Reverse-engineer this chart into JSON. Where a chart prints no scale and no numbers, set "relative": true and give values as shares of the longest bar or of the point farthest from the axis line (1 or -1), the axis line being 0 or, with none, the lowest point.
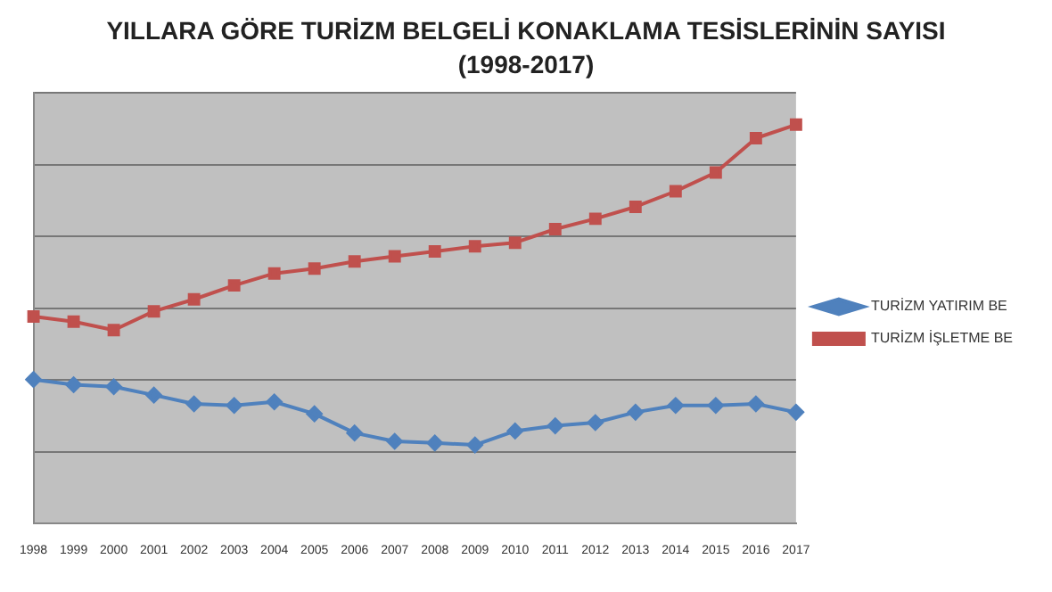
{
  "chart_data": {
    "type": "line",
    "title": "YILLARA GÖRE TURİZM BELGELİ KONAKLAMA TESİSLERİNİN SAYISI",
    "subtitle": "(1998-2017)",
    "categories": [
      "1998",
      "1999",
      "2000",
      "2001",
      "2002",
      "2003",
      "2004",
      "2005",
      "2006",
      "2007",
      "2008",
      "2009",
      "2010",
      "2011",
      "2012",
      "2013",
      "2014",
      "2015",
      "2016",
      "2017"
    ],
    "relative": true,
    "grid": "y",
    "legend": "right",
    "series": [
      {
        "name": "TURİZM YATIRIM BE",
        "color": "#4f81bd",
        "marker": "diamond",
        "values": [
          0.361,
          0.348,
          0.343,
          0.322,
          0.3,
          0.296,
          0.305,
          0.275,
          0.227,
          0.206,
          0.202,
          0.197,
          0.232,
          0.245,
          0.253,
          0.279,
          0.296,
          0.296,
          0.3,
          0.279
        ]
      },
      {
        "name": "TURİZM İŞLETME BE",
        "color": "#c0504d",
        "marker": "square",
        "values": [
          0.519,
          0.506,
          0.485,
          0.532,
          0.562,
          0.597,
          0.627,
          0.639,
          0.657,
          0.67,
          0.682,
          0.695,
          0.704,
          0.738,
          0.764,
          0.794,
          0.833,
          0.88,
          0.966,
          1
        ]
      }
    ]
  }
}
